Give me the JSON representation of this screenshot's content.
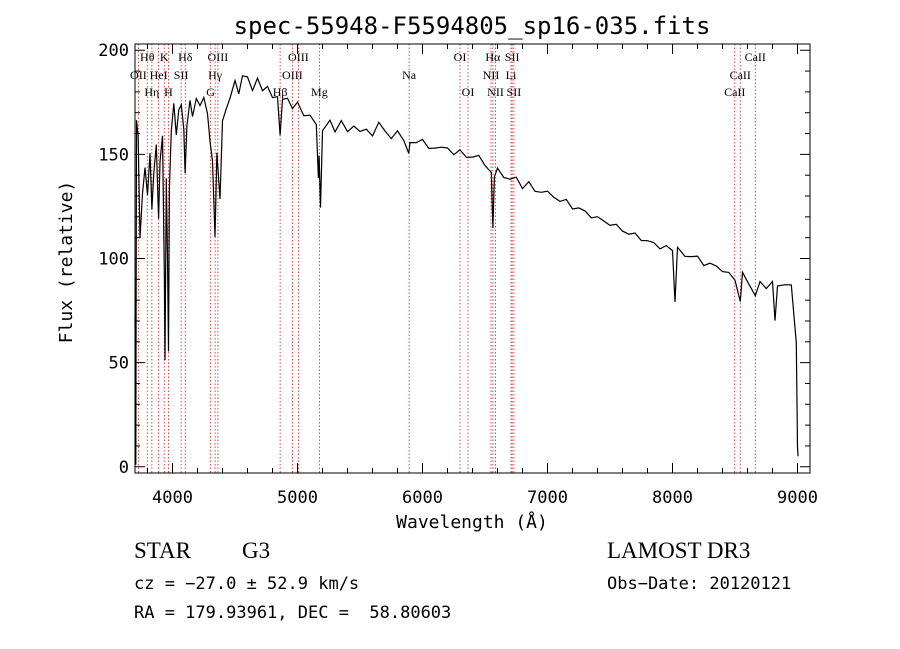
{
  "chart_data": {
    "type": "line",
    "title": "spec-55948-F5594805_sp16-035.fits",
    "xlabel": "Wavelength (Å)",
    "ylabel": "Flux (relative)",
    "xlim": [
      3700,
      9100
    ],
    "ylim": [
      -3,
      203
    ],
    "xticks": [
      4000,
      5000,
      6000,
      7000,
      8000,
      9000
    ],
    "xtick_labels": [
      "4000",
      "5000",
      "6000",
      "7000",
      "8000",
      "9000"
    ],
    "yticks": [
      0,
      50,
      100,
      150,
      200
    ],
    "ytick_labels": [
      "0",
      "50",
      "100",
      "150",
      "200"
    ],
    "series": [
      {
        "name": "spectrum",
        "points": [
          [
            3700,
            72
          ],
          [
            3706,
            2
          ],
          [
            3712,
            165
          ],
          [
            3725,
            160
          ],
          [
            3740,
            110
          ],
          [
            3760,
            130
          ],
          [
            3780,
            145
          ],
          [
            3800,
            130
          ],
          [
            3820,
            150
          ],
          [
            3835,
            125
          ],
          [
            3850,
            140
          ],
          [
            3870,
            155
          ],
          [
            3889,
            120
          ],
          [
            3900,
            145
          ],
          [
            3920,
            160
          ],
          [
            3935,
            90
          ],
          [
            3940,
            50
          ],
          [
            3950,
            140
          ],
          [
            3960,
            100
          ],
          [
            3968,
            55
          ],
          [
            3975,
            135
          ],
          [
            3990,
            160
          ],
          [
            4010,
            175
          ],
          [
            4030,
            160
          ],
          [
            4050,
            170
          ],
          [
            4070,
            175
          ],
          [
            4090,
            162
          ],
          [
            4101,
            140
          ],
          [
            4115,
            165
          ],
          [
            4140,
            175
          ],
          [
            4160,
            168
          ],
          [
            4190,
            178
          ],
          [
            4220,
            172
          ],
          [
            4250,
            178
          ],
          [
            4280,
            170
          ],
          [
            4300,
            155
          ],
          [
            4320,
            148
          ],
          [
            4340,
            110
          ],
          [
            4355,
            150
          ],
          [
            4380,
            130
          ],
          [
            4400,
            165
          ],
          [
            4430,
            172
          ],
          [
            4460,
            178
          ],
          [
            4500,
            184
          ],
          [
            4530,
            180
          ],
          [
            4560,
            188
          ],
          [
            4600,
            186
          ],
          [
            4640,
            182
          ],
          [
            4680,
            186
          ],
          [
            4720,
            180
          ],
          [
            4760,
            184
          ],
          [
            4800,
            176
          ],
          [
            4840,
            178
          ],
          [
            4861,
            160
          ],
          [
            4880,
            175
          ],
          [
            4920,
            178
          ],
          [
            4960,
            172
          ],
          [
            5000,
            174
          ],
          [
            5050,
            170
          ],
          [
            5100,
            168
          ],
          [
            5150,
            164
          ],
          [
            5167,
            140
          ],
          [
            5173,
            148
          ],
          [
            5184,
            125
          ],
          [
            5200,
            162
          ],
          [
            5260,
            165
          ],
          [
            5300,
            162
          ],
          [
            5350,
            166
          ],
          [
            5400,
            160
          ],
          [
            5450,
            165
          ],
          [
            5500,
            160
          ],
          [
            5550,
            162
          ],
          [
            5600,
            160
          ],
          [
            5650,
            164
          ],
          [
            5700,
            162
          ],
          [
            5750,
            158
          ],
          [
            5800,
            160
          ],
          [
            5850,
            158
          ],
          [
            5890,
            150
          ],
          [
            5900,
            155
          ],
          [
            5950,
            157
          ],
          [
            6000,
            156
          ],
          [
            6050,
            153
          ],
          [
            6100,
            154
          ],
          [
            6150,
            152
          ],
          [
            6200,
            154
          ],
          [
            6250,
            150
          ],
          [
            6300,
            151
          ],
          [
            6350,
            150
          ],
          [
            6400,
            148
          ],
          [
            6450,
            149
          ],
          [
            6500,
            146
          ],
          [
            6550,
            140
          ],
          [
            6563,
            115
          ],
          [
            6575,
            140
          ],
          [
            6600,
            142
          ],
          [
            6650,
            140
          ],
          [
            6700,
            138
          ],
          [
            6750,
            138
          ],
          [
            6800,
            135
          ],
          [
            6850,
            136
          ],
          [
            6900,
            132
          ],
          [
            6950,
            133
          ],
          [
            7000,
            131
          ],
          [
            7050,
            130
          ],
          [
            7100,
            128
          ],
          [
            7150,
            127
          ],
          [
            7200,
            125
          ],
          [
            7250,
            124
          ],
          [
            7300,
            122
          ],
          [
            7350,
            121
          ],
          [
            7400,
            119
          ],
          [
            7450,
            118
          ],
          [
            7500,
            117
          ],
          [
            7550,
            115
          ],
          [
            7600,
            114
          ],
          [
            7650,
            112
          ],
          [
            7700,
            111
          ],
          [
            7750,
            110
          ],
          [
            7800,
            108
          ],
          [
            7850,
            107
          ],
          [
            7900,
            106
          ],
          [
            7950,
            105
          ],
          [
            8000,
            104
          ],
          [
            8020,
            80
          ],
          [
            8040,
            104
          ],
          [
            8100,
            102
          ],
          [
            8150,
            101
          ],
          [
            8200,
            100
          ],
          [
            8250,
            98
          ],
          [
            8300,
            97
          ],
          [
            8350,
            96
          ],
          [
            8400,
            95
          ],
          [
            8450,
            92
          ],
          [
            8500,
            90
          ],
          [
            8542,
            80
          ],
          [
            8560,
            92
          ],
          [
            8600,
            90
          ],
          [
            8662,
            82
          ],
          [
            8700,
            88
          ],
          [
            8750,
            87
          ],
          [
            8800,
            88
          ],
          [
            8820,
            70
          ],
          [
            8840,
            88
          ],
          [
            8900,
            86
          ],
          [
            8950,
            88
          ],
          [
            8990,
            60
          ],
          [
            9000,
            8
          ],
          [
            9005,
            5
          ]
        ]
      }
    ],
    "annotations": {
      "lines": [
        {
          "name": "H-theta",
          "label": "Hθ",
          "x": 3798,
          "row": 0
        },
        {
          "name": "OII",
          "label": "OII",
          "x": 3727,
          "row": 1
        },
        {
          "name": "H-eta",
          "label": "Hη",
          "x": 3835,
          "row": 2
        },
        {
          "name": "HeI",
          "label": "HeI",
          "x": 3889,
          "row": 1
        },
        {
          "name": "K",
          "label": "K",
          "x": 3934,
          "row": 0
        },
        {
          "name": "SII-a",
          "label": "SII",
          "x": 4069,
          "row": 1
        },
        {
          "name": "H-epsilon",
          "label": "H",
          "x": 3968,
          "row": 2
        },
        {
          "name": "H-delta",
          "label": "Hδ",
          "x": 4102,
          "row": 0
        },
        {
          "name": "OIII-a",
          "label": "OIII",
          "x": 4363,
          "row": 0
        },
        {
          "name": "H-gamma",
          "label": "Hγ",
          "x": 4341,
          "row": 1
        },
        {
          "name": "G",
          "label": "G",
          "x": 4305,
          "row": 2
        },
        {
          "name": "H-beta",
          "label": "Hβ",
          "x": 4861,
          "row": 2
        },
        {
          "name": "OIII-b",
          "label": "OIII",
          "x": 5007,
          "row": 0
        },
        {
          "name": "OIII-c",
          "label": "OIII",
          "x": 4959,
          "row": 1
        },
        {
          "name": "Mg",
          "label": "Mg",
          "x": 5175,
          "row": 2
        },
        {
          "name": "Na",
          "label": "Na",
          "x": 5893,
          "row": 1
        },
        {
          "name": "OI-a",
          "label": "OI",
          "x": 6300,
          "row": 0
        },
        {
          "name": "OI-b",
          "label": "OI",
          "x": 6364,
          "row": 2
        },
        {
          "name": "H-alpha",
          "label": "Hα",
          "x": 6563,
          "row": 0
        },
        {
          "name": "SII-b",
          "label": "SII",
          "x": 6717,
          "row": 0
        },
        {
          "name": "NII-a",
          "label": "NII",
          "x": 6548,
          "row": 1
        },
        {
          "name": "Li",
          "label": "Li",
          "x": 6708,
          "row": 1
        },
        {
          "name": "NII-b",
          "label": "NII",
          "x": 6584,
          "row": 2
        },
        {
          "name": "SII-c",
          "label": "SII",
          "x": 6731,
          "row": 2
        },
        {
          "name": "CaII-a",
          "label": "CaII",
          "x": 8662,
          "row": 0
        },
        {
          "name": "CaII-b",
          "label": "CaII",
          "x": 8542,
          "row": 1
        },
        {
          "name": "CaII-c",
          "label": "CaII",
          "x": 8498,
          "row": 2
        }
      ]
    }
  },
  "footer": {
    "object_class": "STAR",
    "subclass": "G3",
    "survey": "LAMOST DR3",
    "cz": "cz = −27.0 ± 52.9 km/s",
    "obs_date": "Obs−Date: 20120121",
    "coords": "RA = 179.93961, DEC =  58.80603"
  },
  "colors": {
    "line_marker": "#cc2222",
    "spectrum": "#000000"
  }
}
